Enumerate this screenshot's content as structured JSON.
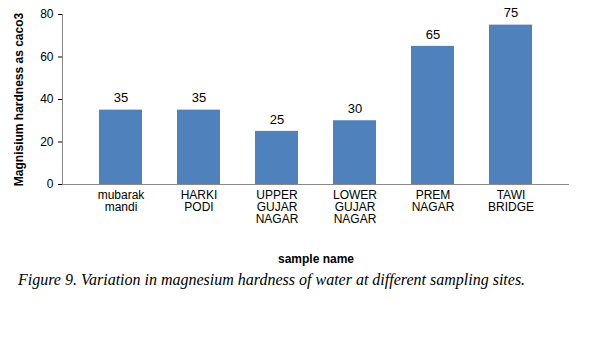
{
  "chart_data": {
    "type": "bar",
    "caption": "Figure 9. Variation in magnesium hardness of water at different sampling sites.",
    "x_label": "sample name",
    "y_label": "Magnisium hardness as caco3",
    "categories": [
      "mubarak mandi",
      "HARKI PODI",
      "UPPER GUJAR NAGAR",
      "LOWER GUJAR NAGAR",
      "PREM NAGAR",
      "TAWI BRIDGE"
    ],
    "values": [
      35,
      35,
      25,
      30,
      65,
      75
    ],
    "color": "#4f81bd",
    "ylim": [
      0,
      80
    ],
    "yticks": [
      0,
      20,
      40,
      60,
      80
    ],
    "grid": false,
    "data_labels": true
  }
}
